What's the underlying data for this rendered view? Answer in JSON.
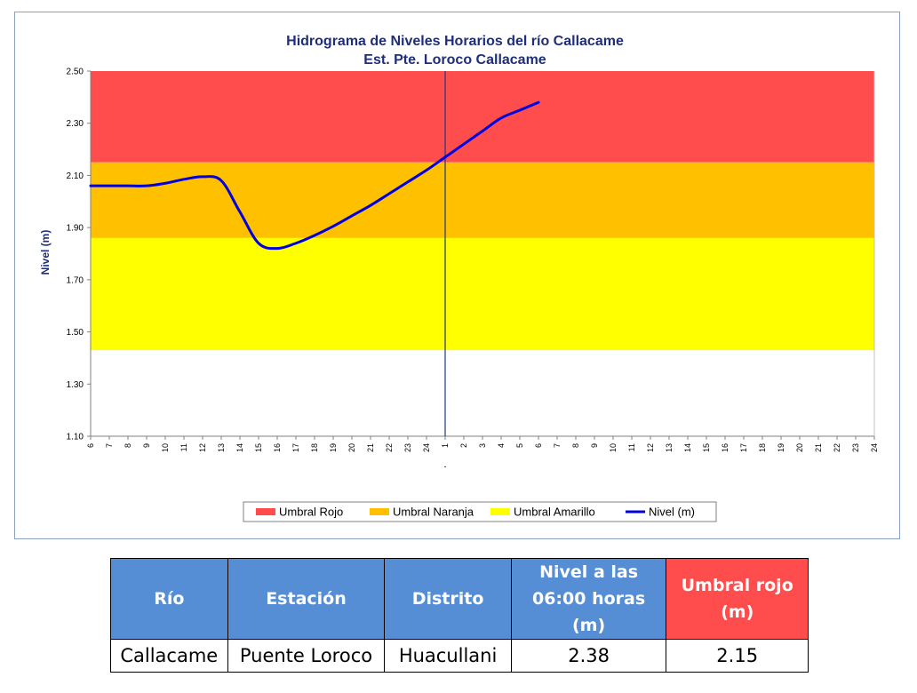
{
  "chart_data": {
    "type": "line",
    "title": "Hidrograma de Niveles Horarios del río Callacame",
    "subtitle": "Est. Pte. Loroco Callacame",
    "ylabel": "Nivel (m)",
    "xlabel": "",
    "ylim": [
      1.1,
      2.5
    ],
    "yticks": [
      "1.10",
      "1.30",
      "1.50",
      "1.70",
      "1.90",
      "2.10",
      "2.30",
      "2.50"
    ],
    "x_tick_labels": [
      "6",
      "7",
      "8",
      "9",
      "10",
      "11",
      "12",
      "13",
      "14",
      "15",
      "16",
      "17",
      "18",
      "19",
      "20",
      "21",
      "22",
      "23",
      "24",
      "1",
      "2",
      "3",
      "4",
      "5",
      "6",
      "7",
      "8",
      "9",
      "10",
      "11",
      "12",
      "13",
      "14",
      "15",
      "16",
      "17",
      "18",
      "19",
      "20",
      "21",
      "22",
      "23",
      "24"
    ],
    "x_extra_label": "-",
    "bands": [
      {
        "name": "Umbral Rojo",
        "from": 2.15,
        "to": 2.5,
        "color": "#ff4d4d"
      },
      {
        "name": "Umbral Naranja",
        "from": 1.86,
        "to": 2.15,
        "color": "#ffc000"
      },
      {
        "name": "Umbral Amarillo",
        "from": 1.43,
        "to": 1.86,
        "color": "#ffff00"
      }
    ],
    "series": [
      {
        "name": "Nivel (m)",
        "color": "#0000e0",
        "x": [
          0,
          1,
          2,
          3,
          4,
          5,
          6,
          7,
          8,
          9,
          10,
          11,
          12,
          13,
          14,
          15,
          16,
          17,
          18,
          19,
          20,
          21,
          22,
          23,
          24
        ],
        "values": [
          2.06,
          2.06,
          2.06,
          2.06,
          2.07,
          2.085,
          2.095,
          2.08,
          1.96,
          1.84,
          1.82,
          1.84,
          1.87,
          1.905,
          1.945,
          1.985,
          2.03,
          2.075,
          2.12,
          2.17,
          2.22,
          2.27,
          2.32,
          2.35,
          2.38
        ]
      }
    ],
    "current_marker_x": 19,
    "legend": {
      "position": "bottom",
      "items": [
        {
          "label": "Umbral Rojo",
          "kind": "box",
          "color": "#ff4d4d"
        },
        {
          "label": "Umbral Naranja",
          "kind": "box",
          "color": "#ffc000"
        },
        {
          "label": "Umbral Amarillo",
          "kind": "box",
          "color": "#ffff00"
        },
        {
          "label": "Nivel (m)",
          "kind": "line",
          "color": "#0000e0"
        }
      ]
    },
    "grid": false
  },
  "table": {
    "headers": {
      "rio": "Río",
      "estacion": "Estación",
      "distrito": "Distrito",
      "nivel": "Nivel a las 06:00 horas (m)",
      "umbral": "Umbral rojo (m)"
    },
    "row": {
      "rio": "Callacame",
      "estacion": "Puente Loroco",
      "distrito": "Huacullani",
      "nivel": "2.38",
      "umbral": "2.15"
    }
  }
}
